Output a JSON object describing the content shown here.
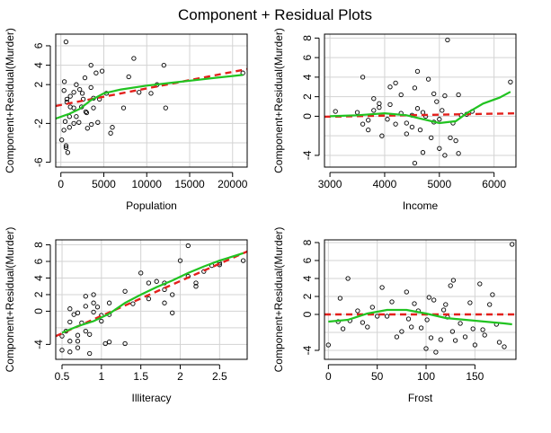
{
  "figure": {
    "title": "Component + Residual Plots"
  },
  "colors": {
    "component_line": "#e3201c",
    "residual_smooth": "#21c321",
    "grid": "#d3d3d3",
    "points": "#000000"
  },
  "chart_data": [
    {
      "type": "scatter",
      "xlabel": "Population",
      "ylabel": "Component+Residual(Murder)",
      "xlim": [
        -600,
        21700
      ],
      "ylim": [
        -6.5,
        7.2
      ],
      "xticks": [
        0,
        5000,
        10000,
        15000,
        20000
      ],
      "yticks": [
        -6,
        -2,
        2,
        4,
        6
      ],
      "xgrid": [
        0,
        5000,
        10000,
        15000,
        20000
      ],
      "ygrid": [
        -6,
        -4,
        -2,
        0,
        2,
        4,
        6
      ],
      "grid": true,
      "points": [
        [
          365,
          1.4
        ],
        [
          3559,
          -2.1
        ],
        [
          590,
          6.4
        ],
        [
          1000,
          -1.3
        ],
        [
          4100,
          3.2
        ],
        [
          4300,
          -1.9
        ],
        [
          3100,
          -2.5
        ],
        [
          2100,
          -1.9
        ],
        [
          12000,
          4.0
        ],
        [
          2600,
          0.5
        ],
        [
          800,
          -5.0
        ],
        [
          1500,
          1.2
        ],
        [
          11200,
          2.0
        ],
        [
          5300,
          1.1
        ],
        [
          1800,
          -1.3
        ],
        [
          9100,
          1.2
        ],
        [
          600,
          -4.3
        ],
        [
          1500,
          -0.4
        ],
        [
          3800,
          -0.4
        ],
        [
          5800,
          -3.0
        ],
        [
          2900,
          -0.8
        ],
        [
          10500,
          1.1
        ],
        [
          500,
          -1.8
        ],
        [
          4800,
          3.4
        ],
        [
          3500,
          1.7
        ],
        [
          3500,
          4.0
        ],
        [
          1800,
          2.0
        ],
        [
          6000,
          -2.4
        ],
        [
          2800,
          2.7
        ],
        [
          7300,
          -0.4
        ],
        [
          8500,
          4.7
        ],
        [
          1100,
          0.8
        ],
        [
          1000,
          -2.4
        ],
        [
          2200,
          1.5
        ],
        [
          400,
          2.3
        ],
        [
          700,
          0.2
        ],
        [
          7900,
          2.8
        ],
        [
          2400,
          -0.3
        ],
        [
          100,
          -3.7
        ],
        [
          4500,
          0.5
        ],
        [
          21200,
          3.2
        ],
        [
          350,
          -2.7
        ],
        [
          2500,
          1.1
        ],
        [
          12200,
          -0.4
        ],
        [
          1500,
          -2.0
        ],
        [
          3000,
          -0.9
        ],
        [
          3800,
          0.6
        ],
        [
          600,
          -4.5
        ],
        [
          700,
          0.5
        ],
        [
          1100,
          -0.3
        ]
      ],
      "component_line": [
        [
          -600,
          -0.2
        ],
        [
          21700,
          3.6
        ]
      ],
      "smooth": [
        [
          -600,
          -1.5
        ],
        [
          1000,
          -1.0
        ],
        [
          2200,
          -0.5
        ],
        [
          3500,
          0.4
        ],
        [
          5000,
          1.1
        ],
        [
          7000,
          1.5
        ],
        [
          10000,
          1.9
        ],
        [
          13000,
          2.2
        ],
        [
          16000,
          2.5
        ],
        [
          18000,
          2.7
        ],
        [
          21200,
          3.0
        ]
      ]
    },
    {
      "type": "scatter",
      "xlabel": "Income",
      "ylabel": "Component+Residual(Murder)",
      "xlim": [
        2900,
        6400
      ],
      "ylim": [
        -5.2,
        8.4
      ],
      "xticks": [
        3000,
        4000,
        5000,
        6000
      ],
      "yticks": [
        -4,
        0,
        2,
        4,
        6,
        8
      ],
      "xgrid": [
        3000,
        4000,
        5000,
        6000
      ],
      "ygrid": [
        -4,
        -2,
        0,
        2,
        4,
        6,
        8
      ],
      "grid": true,
      "points": [
        [
          3100,
          0.5
        ],
        [
          3500,
          0.4
        ],
        [
          3600,
          -0.8
        ],
        [
          3600,
          4.0
        ],
        [
          3700,
          -0.4
        ],
        [
          3700,
          -1.4
        ],
        [
          3800,
          0.6
        ],
        [
          3800,
          1.8
        ],
        [
          3900,
          1.3
        ],
        [
          3900,
          0.9
        ],
        [
          3950,
          -2.0
        ],
        [
          4050,
          -0.3
        ],
        [
          4100,
          3.0
        ],
        [
          4100,
          1.2
        ],
        [
          4200,
          3.4
        ],
        [
          4200,
          -0.8
        ],
        [
          4300,
          0.3
        ],
        [
          4300,
          2.2
        ],
        [
          4400,
          -1.8
        ],
        [
          4400,
          -0.7
        ],
        [
          4500,
          0.1
        ],
        [
          4500,
          -1.1
        ],
        [
          4550,
          -4.8
        ],
        [
          4550,
          2.9
        ],
        [
          4600,
          0.8
        ],
        [
          4600,
          4.6
        ],
        [
          4650,
          -1.4
        ],
        [
          4700,
          0.4
        ],
        [
          4700,
          -3.7
        ],
        [
          4750,
          0.0
        ],
        [
          4800,
          3.8
        ],
        [
          4850,
          -2.2
        ],
        [
          4900,
          2.3
        ],
        [
          4900,
          -0.6
        ],
        [
          4950,
          1.5
        ],
        [
          5000,
          -3.3
        ],
        [
          5000,
          -0.3
        ],
        [
          5050,
          0.6
        ],
        [
          5100,
          -4.0
        ],
        [
          5100,
          2.1
        ],
        [
          5150,
          7.8
        ],
        [
          5200,
          -2.2
        ],
        [
          5250,
          -0.7
        ],
        [
          5300,
          -2.5
        ],
        [
          5350,
          2.2
        ],
        [
          5350,
          -3.8
        ],
        [
          5400,
          0.1
        ],
        [
          5500,
          0.2
        ],
        [
          6300,
          3.5
        ],
        [
          5600,
          0.5
        ]
      ],
      "component_line": [
        [
          2900,
          -0.05
        ],
        [
          6400,
          0.3
        ]
      ],
      "smooth": [
        [
          3000,
          0.0
        ],
        [
          3500,
          0.1
        ],
        [
          4000,
          0.3
        ],
        [
          4400,
          0.1
        ],
        [
          4700,
          -0.3
        ],
        [
          5000,
          -0.7
        ],
        [
          5300,
          -0.5
        ],
        [
          5500,
          0.3
        ],
        [
          5800,
          1.3
        ],
        [
          6100,
          1.9
        ],
        [
          6300,
          2.5
        ]
      ]
    },
    {
      "type": "scatter",
      "xlabel": "Illiteracy",
      "ylabel": "Component+Residual(Murder)",
      "xlim": [
        0.42,
        2.85
      ],
      "ylim": [
        -5.8,
        8.6
      ],
      "xticks": [
        0.5,
        1.0,
        1.5,
        2.0,
        2.5
      ],
      "yticks": [
        -4,
        0,
        2,
        4,
        6,
        8
      ],
      "xgrid": [
        0.5,
        1.0,
        1.5,
        2.0,
        2.5
      ],
      "ygrid": [
        -4,
        -2,
        0,
        2,
        4,
        6,
        8
      ],
      "grid": true,
      "points": [
        [
          0.5,
          -4.7
        ],
        [
          0.5,
          -3.0
        ],
        [
          0.55,
          -2.4
        ],
        [
          0.6,
          -1.3
        ],
        [
          0.6,
          0.3
        ],
        [
          0.6,
          -3.6
        ],
        [
          0.6,
          -4.9
        ],
        [
          0.65,
          -0.4
        ],
        [
          0.7,
          -0.2
        ],
        [
          0.7,
          -3.6
        ],
        [
          0.7,
          -2.9
        ],
        [
          0.7,
          -4.4
        ],
        [
          0.75,
          -1.4
        ],
        [
          0.8,
          0.6
        ],
        [
          0.8,
          1.8
        ],
        [
          0.8,
          -2.4
        ],
        [
          0.85,
          -2.8
        ],
        [
          0.85,
          -5.1
        ],
        [
          0.9,
          2.0
        ],
        [
          0.9,
          -0.1
        ],
        [
          0.9,
          1.0
        ],
        [
          0.95,
          0.5
        ],
        [
          1.0,
          -1.2
        ],
        [
          1.05,
          -3.9
        ],
        [
          1.1,
          -3.7
        ],
        [
          1.1,
          -0.4
        ],
        [
          1.1,
          1.0
        ],
        [
          1.3,
          2.4
        ],
        [
          1.3,
          -3.9
        ],
        [
          1.4,
          0.9
        ],
        [
          1.5,
          4.6
        ],
        [
          1.6,
          3.4
        ],
        [
          1.6,
          1.5
        ],
        [
          1.7,
          3.6
        ],
        [
          1.8,
          3.4
        ],
        [
          1.8,
          2.6
        ],
        [
          1.8,
          1.0
        ],
        [
          1.9,
          -0.2
        ],
        [
          2.0,
          6.1
        ],
        [
          2.1,
          7.9
        ],
        [
          2.1,
          4.2
        ],
        [
          2.2,
          3.0
        ],
        [
          2.2,
          3.4
        ],
        [
          2.3,
          4.8
        ],
        [
          2.4,
          5.5
        ],
        [
          2.5,
          5.6
        ],
        [
          2.8,
          6.1
        ],
        [
          2.5,
          5.8
        ],
        [
          1.9,
          2.0
        ],
        [
          1.0,
          -0.5
        ]
      ],
      "component_line": [
        [
          0.42,
          -3.0
        ],
        [
          2.85,
          7.2
        ]
      ],
      "smooth": [
        [
          0.5,
          -2.6
        ],
        [
          0.7,
          -1.8
        ],
        [
          0.9,
          -1.2
        ],
        [
          1.1,
          -0.3
        ],
        [
          1.3,
          1.0
        ],
        [
          1.5,
          2.0
        ],
        [
          1.7,
          2.9
        ],
        [
          1.9,
          3.7
        ],
        [
          2.1,
          4.6
        ],
        [
          2.3,
          5.4
        ],
        [
          2.5,
          6.1
        ],
        [
          2.8,
          7.0
        ]
      ]
    },
    {
      "type": "scatter",
      "xlabel": "Frost",
      "ylabel": "Component+Residual(Murder)",
      "xlim": [
        -4,
        192
      ],
      "ylim": [
        -5.0,
        8.3
      ],
      "xticks": [
        0,
        50,
        100,
        150
      ],
      "yticks": [
        -4,
        0,
        2,
        4,
        6,
        8
      ],
      "xgrid": [
        0,
        50,
        100,
        150
      ],
      "ygrid": [
        -4,
        -2,
        0,
        2,
        4,
        6,
        8
      ],
      "grid": true,
      "points": [
        [
          0,
          -3.4
        ],
        [
          10,
          -0.8
        ],
        [
          12,
          1.8
        ],
        [
          15,
          -1.6
        ],
        [
          20,
          4.0
        ],
        [
          22,
          -0.7
        ],
        [
          30,
          0.4
        ],
        [
          35,
          -0.9
        ],
        [
          40,
          -1.4
        ],
        [
          45,
          0.8
        ],
        [
          50,
          -0.2
        ],
        [
          55,
          3.0
        ],
        [
          60,
          -0.2
        ],
        [
          65,
          1.4
        ],
        [
          70,
          -2.5
        ],
        [
          75,
          -1.9
        ],
        [
          80,
          2.5
        ],
        [
          82,
          -0.5
        ],
        [
          85,
          -1.4
        ],
        [
          88,
          1.2
        ],
        [
          92,
          0.4
        ],
        [
          95,
          -1.5
        ],
        [
          100,
          -3.8
        ],
        [
          101,
          -0.6
        ],
        [
          103,
          1.9
        ],
        [
          105,
          -2.6
        ],
        [
          108,
          1.6
        ],
        [
          110,
          -4.2
        ],
        [
          115,
          -2.8
        ],
        [
          118,
          0.5
        ],
        [
          120,
          1.1
        ],
        [
          122,
          -0.3
        ],
        [
          125,
          3.2
        ],
        [
          127,
          -1.9
        ],
        [
          128,
          3.8
        ],
        [
          130,
          -2.9
        ],
        [
          135,
          -1.0
        ],
        [
          140,
          -2.5
        ],
        [
          145,
          1.3
        ],
        [
          148,
          -1.6
        ],
        [
          150,
          -3.4
        ],
        [
          155,
          3.4
        ],
        [
          158,
          -1.7
        ],
        [
          160,
          -2.3
        ],
        [
          165,
          1.1
        ],
        [
          168,
          2.2
        ],
        [
          172,
          -1.1
        ],
        [
          175,
          -3.1
        ],
        [
          180,
          -3.6
        ],
        [
          188,
          7.8
        ]
      ],
      "component_line": [
        [
          -4,
          0.0
        ],
        [
          192,
          0.0
        ]
      ],
      "smooth": [
        [
          0,
          -0.8
        ],
        [
          20,
          -0.6
        ],
        [
          40,
          0.1
        ],
        [
          60,
          0.5
        ],
        [
          80,
          0.5
        ],
        [
          100,
          0.1
        ],
        [
          120,
          -0.4
        ],
        [
          140,
          -0.6
        ],
        [
          160,
          -0.8
        ],
        [
          180,
          -1.0
        ],
        [
          188,
          -1.1
        ]
      ]
    }
  ]
}
